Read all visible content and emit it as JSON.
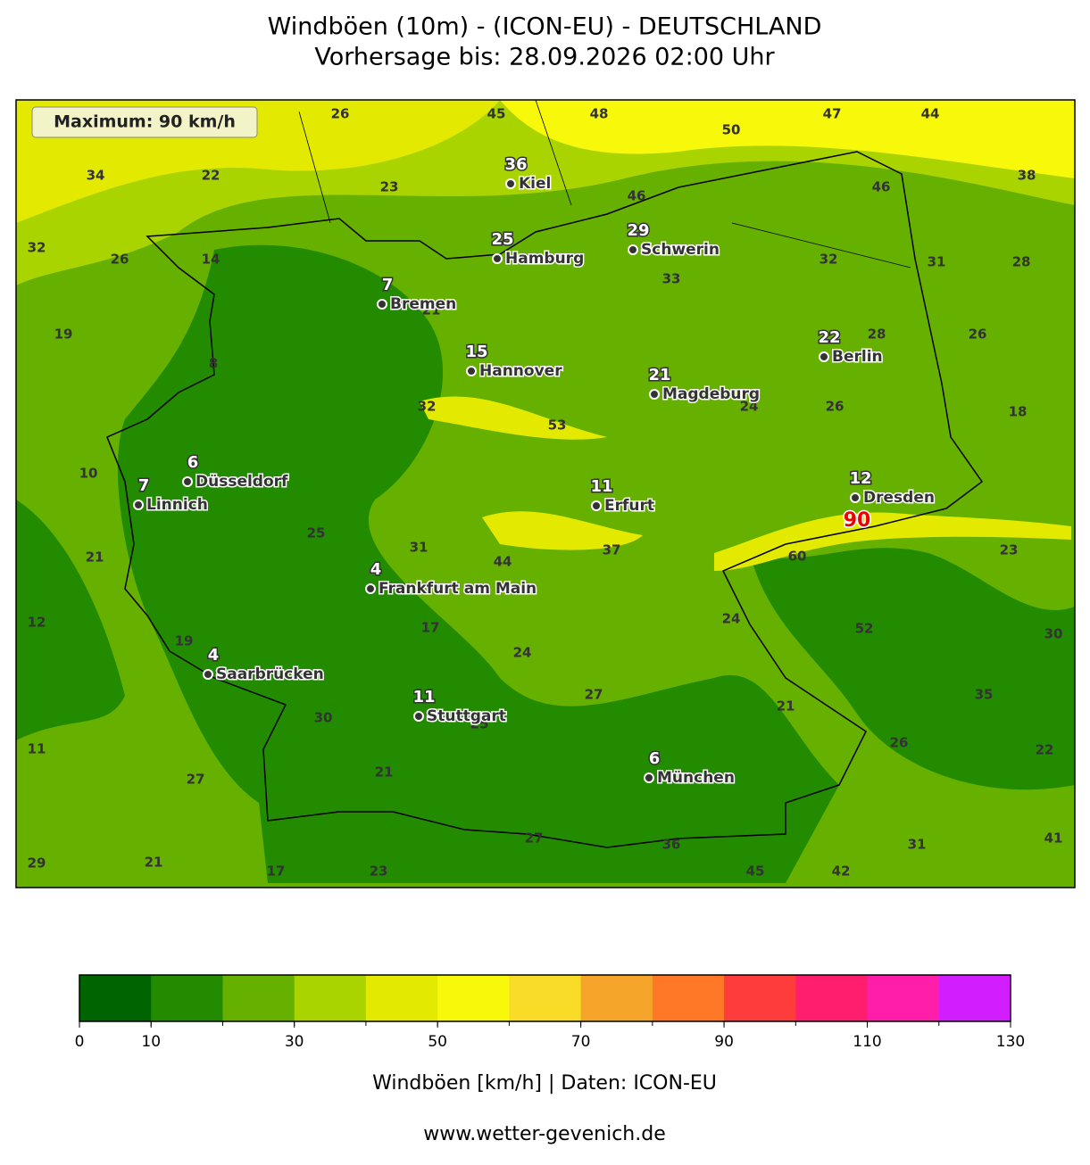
{
  "title": [
    "Windböen (10m) - (ICON-EU) - DEUTSCHLAND",
    "Vorhersage bis: 28.09.2026 02:00 Uhr"
  ],
  "maximum_label": "Maximum: 90 km/h",
  "peak_value": 90,
  "cities": [
    {
      "name": "Kiel",
      "value": 36
    },
    {
      "name": "Hamburg",
      "value": 25
    },
    {
      "name": "Schwerin",
      "value": 29
    },
    {
      "name": "Bremen",
      "value": 7
    },
    {
      "name": "Hannover",
      "value": 15
    },
    {
      "name": "Magdeburg",
      "value": 21
    },
    {
      "name": "Berlin",
      "value": 22
    },
    {
      "name": "Düsseldorf",
      "value": 6
    },
    {
      "name": "Linnich",
      "value": 7
    },
    {
      "name": "Erfurt",
      "value": 11
    },
    {
      "name": "Dresden",
      "value": 12
    },
    {
      "name": "Frankfurt am Main",
      "value": 4
    },
    {
      "name": "Saarbrücken",
      "value": 4
    },
    {
      "name": "Stuttgart",
      "value": 11
    },
    {
      "name": "München",
      "value": 6
    }
  ],
  "grid_values": [
    26,
    45,
    48,
    47,
    44,
    50,
    34,
    22,
    38,
    23,
    46,
    46,
    32,
    26,
    14,
    32,
    31,
    28,
    33,
    21,
    19,
    28,
    26,
    8,
    32,
    53,
    24,
    26,
    18,
    10,
    25,
    31,
    44,
    37,
    60,
    23,
    21,
    12,
    17,
    24,
    52,
    30,
    19,
    24,
    27,
    21,
    35,
    30,
    25,
    11,
    26,
    22,
    21,
    27,
    27,
    36,
    31,
    41,
    29,
    21,
    17,
    23,
    45,
    42
  ],
  "colorbar": {
    "range": [
      0,
      130
    ],
    "ticks": [
      0,
      10,
      30,
      50,
      70,
      90,
      110,
      130
    ],
    "colors": [
      "#006400",
      "#228b00",
      "#66b000",
      "#aad400",
      "#e3ea00",
      "#f8f80a",
      "#f8dc28",
      "#f5a52a",
      "#ff7828",
      "#ff3c3c",
      "#ff1e6e",
      "#ff1eaa",
      "#d21eff"
    ],
    "label": "Windböen [km/h] | Daten: ICON-EU"
  },
  "footer": "www.wetter-gevenich.de"
}
